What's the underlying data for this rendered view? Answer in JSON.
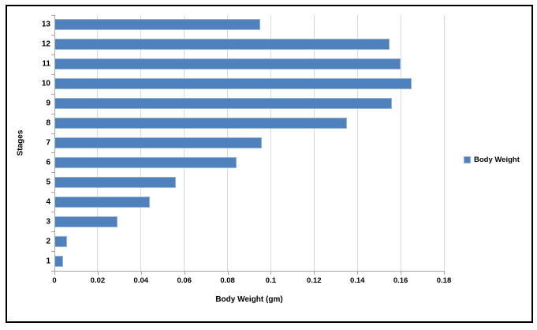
{
  "figure": {
    "background_color": "#ffffff",
    "border_color": "#000000"
  },
  "chart_data": {
    "type": "bar",
    "orientation": "horizontal",
    "title": "",
    "xlabel": "Body Weight (gm)",
    "ylabel": "Stages",
    "categories": [
      "1",
      "2",
      "3",
      "4",
      "5",
      "6",
      "7",
      "8",
      "9",
      "10",
      "11",
      "12",
      "13"
    ],
    "values": [
      0.004,
      0.006,
      0.029,
      0.044,
      0.056,
      0.084,
      0.096,
      0.135,
      0.156,
      0.165,
      0.16,
      0.155,
      0.095
    ],
    "series_name": "Body Weight",
    "xlim": [
      0,
      0.18
    ],
    "x_ticks": [
      "0",
      "0.02",
      "0.04",
      "0.06",
      "0.08",
      "0.1",
      "0.12",
      "0.14",
      "0.16",
      "0.18"
    ],
    "x_tick_values": [
      0,
      0.02,
      0.04,
      0.06,
      0.08,
      0.1,
      0.12,
      0.14,
      0.16,
      0.18
    ],
    "grid": "vertical-only",
    "legend": {
      "position": "right",
      "entries": [
        {
          "label": "Body Weight",
          "color": "#4f81bd"
        }
      ]
    },
    "bar_color": "#4f81bd",
    "bar_border_color": "#95b3d7",
    "gridline_color": "#d9d9d9",
    "axis_color": "#a6a6a6",
    "text_color": "#000000"
  }
}
